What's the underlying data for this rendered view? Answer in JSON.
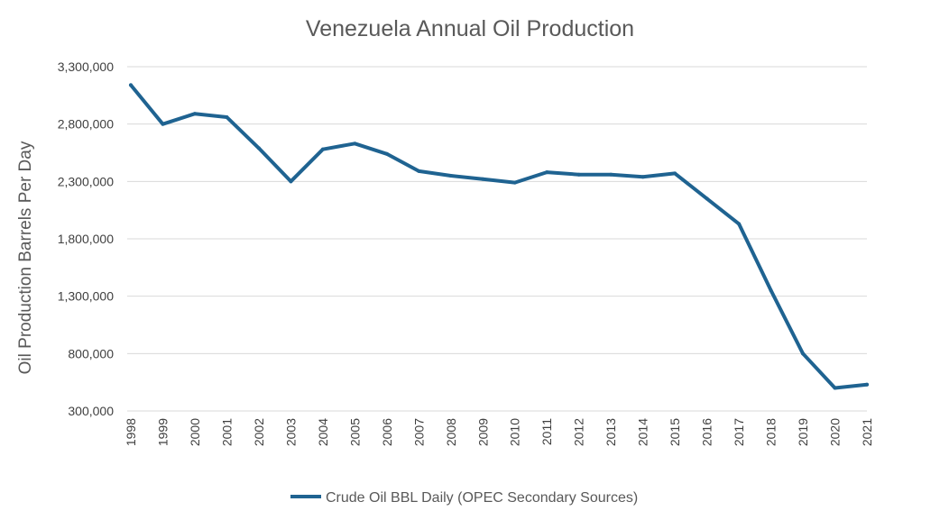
{
  "chart_data": {
    "type": "line",
    "title": "Venezuela Annual Oil Production",
    "xlabel": "",
    "ylabel": "Oil Production Barrels Per Day",
    "ylim": [
      300000,
      3300000
    ],
    "yticks": [
      300000,
      800000,
      1300000,
      1800000,
      2300000,
      2800000,
      3300000
    ],
    "ytick_labels": [
      "300,000",
      "800,000",
      "1,300,000",
      "1,800,000",
      "2,300,000",
      "2,800,000",
      "3,300,000"
    ],
    "grid": true,
    "legend_position": "bottom",
    "categories": [
      "1998",
      "1999",
      "2000",
      "2001",
      "2002",
      "2003",
      "2004",
      "2005",
      "2006",
      "2007",
      "2008",
      "2009",
      "2010",
      "2011",
      "2012",
      "2013",
      "2014",
      "2015",
      "2016",
      "2017",
      "2018",
      "2019",
      "2020",
      "2021"
    ],
    "series": [
      {
        "name": "Crude Oil BBL Daily (OPEC Secondary Sources)",
        "color": "#1f6391",
        "values": [
          3140000,
          2800000,
          2890000,
          2860000,
          2590000,
          2300000,
          2580000,
          2630000,
          2540000,
          2390000,
          2350000,
          2320000,
          2290000,
          2380000,
          2360000,
          2360000,
          2340000,
          2370000,
          2150000,
          1930000,
          1350000,
          800000,
          500000,
          530000
        ]
      }
    ]
  }
}
